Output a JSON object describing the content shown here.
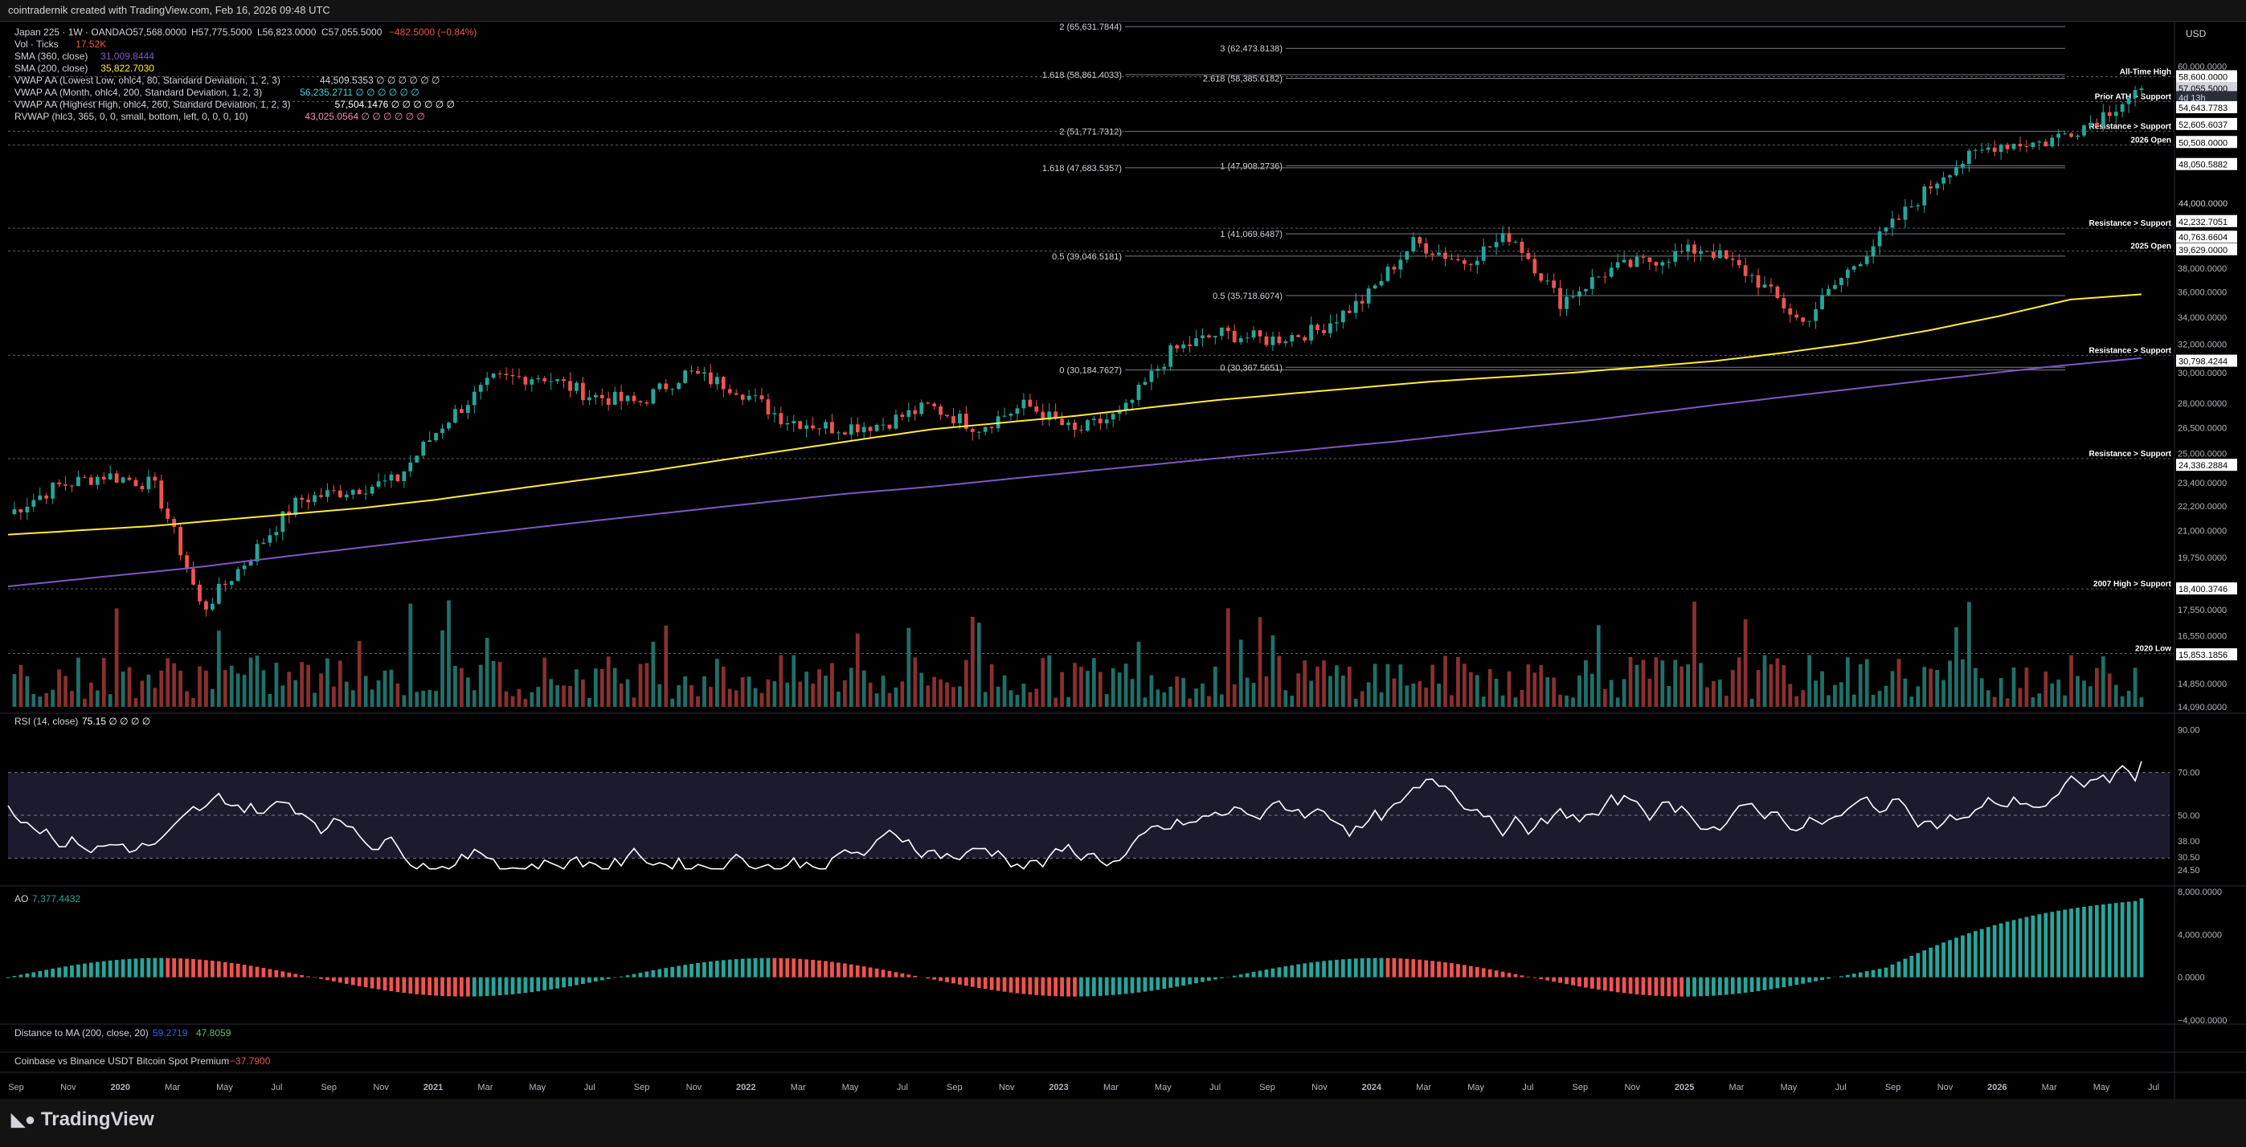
{
  "topbar": {
    "text": "cointradernik created with TradingView.com, Feb 16, 2026 09:48 UTC"
  },
  "legend": {
    "symbol": "Japan 225 · 1W · OANDA",
    "ohlc": {
      "o": "O57,568.0000",
      "h": "H57,775.5000",
      "l": "L56,823.0000",
      "c": "C57,055.5000",
      "chg": "−482.5000 (−0.84%)"
    },
    "rows": [
      {
        "name": "Vol · Ticks",
        "value": "17.52K",
        "color": "#ef5350"
      },
      {
        "name": "SMA (360, close)",
        "value": "31,009.8444",
        "color": "#7e57c2"
      },
      {
        "name": "SMA (200, close)",
        "value": "35,822.7030",
        "color": "#ffeb3b"
      },
      {
        "name": "VWAP AA (Lowest Low, ohlc4, 80, Standard Deviation, 1, 2, 3)",
        "value": "44,509.5353  ∅ ∅ ∅ ∅ ∅ ∅",
        "color": "#d1d4dc"
      },
      {
        "name": "VWAP AA (Month, ohlc4, 200, Standard Deviation, 1, 2, 3)",
        "value": "56,235.2711  ∅ ∅ ∅ ∅ ∅ ∅",
        "color": "#4dd0e1"
      },
      {
        "name": "VWAP AA (Highest High, ohlc4, 260, Standard Deviation, 1, 2, 3)",
        "value": "57,504.1476  ∅ ∅ ∅ ∅ ∅ ∅",
        "color": "#ffffff"
      },
      {
        "name": "RVWAP (hlc3, 365, 0, 0, small, bottom, left, 0, 0, 0, 10)",
        "value": "43,025.0564  ∅ ∅ ∅ ∅ ∅ ∅",
        "color": "#f48fb1"
      }
    ]
  },
  "rsi_legend": {
    "name": "RSI (14, close)",
    "value": "75.15  ∅ ∅ ∅ ∅"
  },
  "ao_legend": {
    "name": "AO",
    "value": "7,377.4432"
  },
  "dist_legend": {
    "name": "Distance to MA (200, close, 20)",
    "v1": "59.2719",
    "v2": "47.8059"
  },
  "premium_legend": {
    "name": "Coinbase vs Binance USDT Bitcoin Spot Premium",
    "value": "−37.7900"
  },
  "currency": "USD",
  "price_axis_ticks": [
    "60,000.0000",
    "38,000.0000",
    "36,000.0000",
    "34,000.0000",
    "32,000.0000",
    "30,000.0000",
    "28,000.0000",
    "26,500.0000",
    "25,000.0000",
    "23,400.0000",
    "22,200.0000",
    "21,000.0000",
    "19,750.0000",
    "17,550.0000",
    "16,550.0000",
    "14,850.0000",
    "14,090.0000"
  ],
  "price_labels": [
    {
      "text": "58,600.0000",
      "bg": "#ffffff",
      "fg": "#000"
    },
    {
      "text": "57,055.5000",
      "bg": "#d1d4dc",
      "fg": "#000"
    },
    {
      "text": "4d 13h",
      "bg": "#2a2e39",
      "fg": "#d1d4dc"
    },
    {
      "text": "54,643.7783",
      "bg": "#ffffff",
      "fg": "#000"
    },
    {
      "text": "52,605.6037",
      "bg": "#ffffff",
      "fg": "#000"
    },
    {
      "text": "50,508.0000",
      "bg": "#ffffff",
      "fg": "#000"
    },
    {
      "text": "48,050.5882",
      "bg": "#ffffff",
      "fg": "#000"
    },
    {
      "text": "44,000.0000",
      "bg": "none",
      "fg": "#d1d4dc"
    },
    {
      "text": "42,232.7051",
      "bg": "#ffffff",
      "fg": "#000"
    },
    {
      "text": "40,763.6604",
      "bg": "#ffffff",
      "fg": "#000"
    },
    {
      "text": "39,629.0000",
      "bg": "#ffffff",
      "fg": "#000"
    },
    {
      "text": "30,798.4244",
      "bg": "#ffffff",
      "fg": "#000"
    },
    {
      "text": "24,336.2884",
      "bg": "#ffffff",
      "fg": "#000"
    },
    {
      "text": "18,400.3746",
      "bg": "#ffffff",
      "fg": "#000"
    },
    {
      "text": "15,853.1856",
      "bg": "#ffffff",
      "fg": "#000"
    }
  ],
  "right_annotations": [
    {
      "text": "All-Time High",
      "price": 58600
    },
    {
      "text": "Prior ATH > Support",
      "price": 55400
    },
    {
      "text": "Resistance > Support",
      "price": 51800
    },
    {
      "text": "2026 Open",
      "price": 50200
    },
    {
      "text": "Resistance > Support",
      "price": 41600
    },
    {
      "text": "2025 Open",
      "price": 39500
    },
    {
      "text": "Resistance > Support",
      "price": 31200
    },
    {
      "text": "Resistance > Support",
      "price": 24700
    },
    {
      "text": "2007 High > Support",
      "price": 18400
    },
    {
      "text": "2020 Low",
      "price": 15900
    }
  ],
  "fib_labels": [
    {
      "text": "2 (65,631.7844)",
      "price": 65631
    },
    {
      "text": "3 (62,473.8138)",
      "price": 62474
    },
    {
      "text": "1.618 (58,861.4033)",
      "price": 58861
    },
    {
      "text": "2.618 (58,385.6182)",
      "price": 58386
    },
    {
      "text": "2 (51,771.7312)",
      "price": 51772
    },
    {
      "text": "1 (47,908.2736)",
      "price": 47908
    },
    {
      "text": "1.618 (47,683.5357)",
      "price": 47684
    },
    {
      "text": "1 (41,069.6487)",
      "price": 41070
    },
    {
      "text": "0.5 (39,046.5181)",
      "price": 39047
    },
    {
      "text": "0.5 (35,718.6074)",
      "price": 35719
    },
    {
      "text": "0 (30,184.7627)",
      "price": 30185
    },
    {
      "text": "0 (30,367.5651)",
      "price": 30368
    }
  ],
  "rsi_ticks": [
    "90.00",
    "70.00",
    "50.00",
    "38.00",
    "30.50",
    "24.50"
  ],
  "ao_ticks": [
    "8,000.0000",
    "4,000.0000",
    "0.0000",
    "−4,000.0000"
  ],
  "time_labels": [
    "Sep",
    "Nov",
    "2020",
    "Mar",
    "May",
    "Jul",
    "Sep",
    "Nov",
    "2021",
    "Mar",
    "May",
    "Jul",
    "Sep",
    "Nov",
    "2022",
    "Mar",
    "May",
    "Jul",
    "Sep",
    "Nov",
    "2023",
    "Mar",
    "May",
    "Jul",
    "Sep",
    "Nov",
    "2024",
    "Mar",
    "May",
    "Jul",
    "Sep",
    "Nov",
    "2025",
    "Mar",
    "May",
    "Jul",
    "Sep",
    "Nov",
    "2026",
    "Mar",
    "May",
    "Jul"
  ],
  "branding": {
    "logo_text": "TradingView"
  },
  "colors": {
    "up": "#26a69a",
    "down": "#ef5350",
    "sma200": "#ffeb3b",
    "sma360": "#7e57c2",
    "rsi": "#ffffff",
    "rsi_band": "#1c1b2e"
  },
  "chart_data": {
    "type": "candlestick",
    "symbol": "Japan 225 · 1W · OANDA",
    "y_scale": "log",
    "ylim": [
      14090,
      66000
    ],
    "weekly_close_approx": {
      "dates": [
        "2019-09",
        "2019-11",
        "2020-01",
        "2020-02",
        "2020-03",
        "2020-04",
        "2020-06",
        "2020-08",
        "2020-10",
        "2020-12",
        "2021-02",
        "2021-03",
        "2021-05",
        "2021-07",
        "2021-09",
        "2021-11",
        "2022-01",
        "2022-03",
        "2022-05",
        "2022-07",
        "2022-09",
        "2022-11",
        "2023-01",
        "2023-03",
        "2023-05",
        "2023-07",
        "2023-09",
        "2023-11",
        "2024-01",
        "2024-03",
        "2024-05",
        "2024-07",
        "2024-08",
        "2024-09",
        "2024-11",
        "2025-01",
        "2025-03",
        "2025-04",
        "2025-06",
        "2025-08",
        "2025-10",
        "2025-11",
        "2025-12",
        "2026-01",
        "2026-02"
      ],
      "values": [
        21800,
        23200,
        23800,
        23300,
        17500,
        19800,
        22500,
        23000,
        23500,
        26800,
        29500,
        29800,
        28500,
        28000,
        30000,
        29000,
        27000,
        26500,
        26700,
        27800,
        26500,
        27900,
        26200,
        27400,
        31500,
        32800,
        32300,
        33000,
        35500,
        40300,
        38500,
        41000,
        35200,
        37800,
        38800,
        39800,
        37200,
        33500,
        38000,
        42500,
        47500,
        50300,
        50500,
        53000,
        57055
      ]
    },
    "sma200_approx": {
      "values": [
        20800,
        21000,
        21200,
        21500,
        21800,
        22100,
        22500,
        23000,
        23500,
        24000,
        24600,
        25200,
        25800,
        26400,
        26800,
        27200,
        27700,
        28200,
        28600,
        29000,
        29400,
        29700,
        30000,
        30400,
        30800,
        31400,
        32100,
        33000,
        34100,
        35400,
        35822
      ]
    },
    "sma360_approx": {
      "values": [
        18500,
        18900,
        19300,
        19800,
        20300,
        20800,
        21300,
        21800,
        22300,
        22800,
        23200,
        23700,
        24200,
        24700,
        25200,
        25700,
        26300,
        26900,
        27600,
        28300,
        29000,
        29700,
        30400,
        31009
      ]
    },
    "rsi": {
      "last": 75.15,
      "bands": [
        30,
        50,
        70
      ]
    },
    "ao": {
      "last": 7377.4432,
      "ylim": [
        -4000,
        8000
      ]
    }
  }
}
